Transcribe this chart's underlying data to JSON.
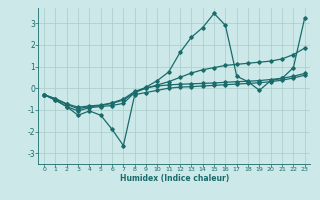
{
  "xlabel": "Humidex (Indice chaleur)",
  "bg_color": "#cce8e8",
  "grid_color": "#aacccc",
  "line_color": "#1a6b6b",
  "xlim": [
    -0.5,
    23.5
  ],
  "ylim": [
    -3.5,
    3.7
  ],
  "yticks": [
    -3,
    -2,
    -1,
    0,
    1,
    2,
    3
  ],
  "xticks": [
    0,
    1,
    2,
    3,
    4,
    5,
    6,
    7,
    8,
    9,
    10,
    11,
    12,
    13,
    14,
    15,
    16,
    17,
    18,
    19,
    20,
    21,
    22,
    23
  ],
  "s1_x": [
    0,
    1,
    2,
    3,
    4,
    5,
    6,
    7,
    8,
    9,
    10,
    11,
    12,
    13,
    14,
    15,
    16,
    17,
    18,
    19,
    20,
    21,
    22,
    23
  ],
  "s1_y": [
    -0.3,
    -0.55,
    -0.85,
    -1.25,
    -1.05,
    -1.25,
    -1.9,
    -2.65,
    -0.3,
    -0.2,
    -0.1,
    -0.0,
    0.05,
    0.07,
    0.1,
    0.13,
    0.16,
    0.19,
    0.22,
    0.25,
    0.3,
    0.37,
    0.47,
    0.6
  ],
  "s2_x": [
    0,
    1,
    2,
    3,
    4,
    5,
    6,
    7,
    8,
    9,
    10,
    11,
    12,
    13,
    14,
    15,
    16,
    17,
    18,
    19,
    20,
    21,
    22,
    23
  ],
  "s2_y": [
    -0.3,
    -0.55,
    -0.85,
    -1.05,
    -0.9,
    -0.85,
    -0.8,
    -0.7,
    -0.2,
    0.05,
    0.35,
    0.75,
    1.65,
    2.35,
    2.8,
    3.45,
    2.9,
    0.55,
    0.3,
    -0.1,
    0.35,
    0.45,
    0.95,
    3.25
  ],
  "s3_x": [
    0,
    1,
    2,
    3,
    4,
    5,
    6,
    7,
    8,
    9,
    10,
    11,
    12,
    13,
    14,
    15,
    16,
    17,
    18,
    19,
    20,
    21,
    22,
    23
  ],
  "s3_y": [
    -0.3,
    -0.5,
    -0.75,
    -0.95,
    -0.85,
    -0.8,
    -0.7,
    -0.55,
    -0.2,
    0.0,
    0.15,
    0.3,
    0.5,
    0.7,
    0.85,
    0.95,
    1.05,
    1.1,
    1.15,
    1.2,
    1.25,
    1.35,
    1.55,
    1.85
  ],
  "s4_x": [
    0,
    1,
    2,
    3,
    4,
    5,
    6,
    7,
    8,
    9,
    10,
    11,
    12,
    13,
    14,
    15,
    16,
    17,
    18,
    19,
    20,
    21,
    22,
    23
  ],
  "s4_y": [
    -0.3,
    -0.48,
    -0.72,
    -0.88,
    -0.82,
    -0.78,
    -0.68,
    -0.5,
    -0.15,
    0.02,
    0.1,
    0.15,
    0.18,
    0.2,
    0.22,
    0.24,
    0.27,
    0.3,
    0.32,
    0.35,
    0.4,
    0.46,
    0.55,
    0.68
  ]
}
